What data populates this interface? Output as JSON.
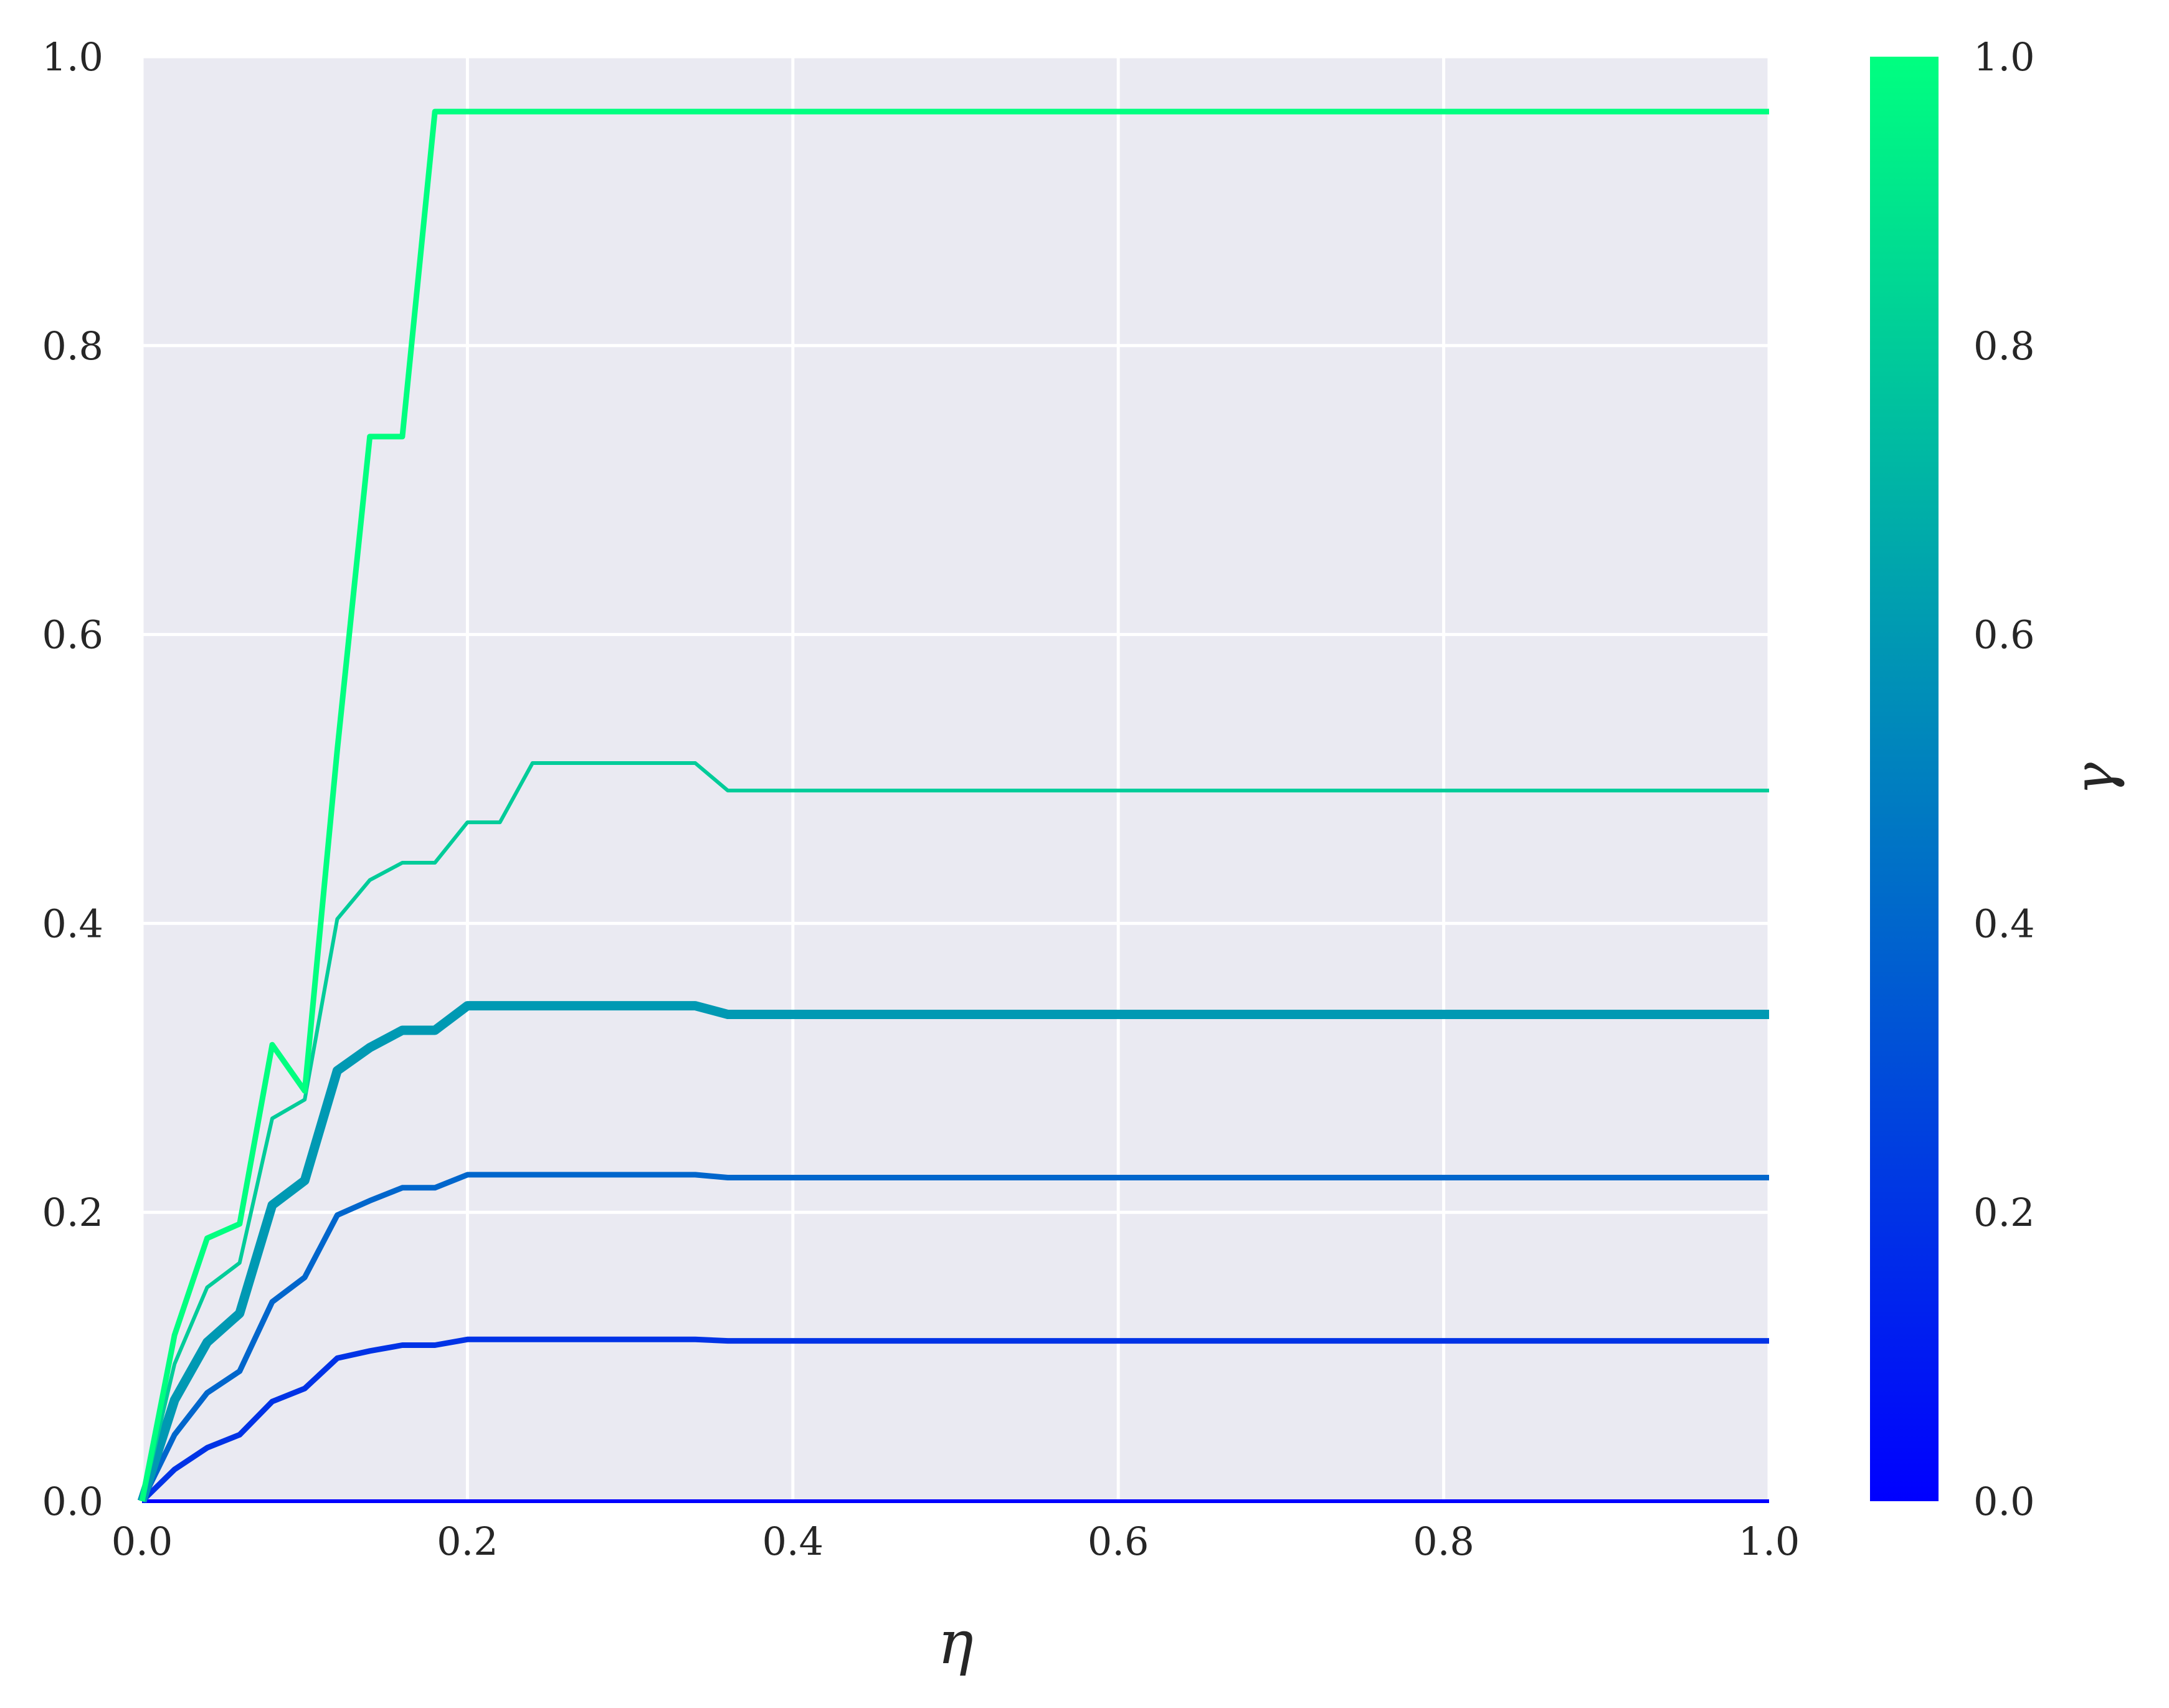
{
  "chart_data": {
    "type": "line",
    "title": "",
    "xlabel": "η",
    "ylabel": "",
    "xlim": [
      0.0,
      1.0
    ],
    "ylim": [
      0.0,
      1.0
    ],
    "grid": true,
    "background": "#eaeaf2",
    "grid_color": "#ffffff",
    "xticks": [
      "0.0",
      "0.2",
      "0.4",
      "0.6",
      "0.8",
      "1.0"
    ],
    "yticks": [
      "0.0",
      "0.2",
      "0.4",
      "0.6",
      "0.8",
      "1.0"
    ],
    "colorbar": {
      "label": "γ",
      "range": [
        0.0,
        1.0
      ],
      "ticks": [
        "0.0",
        "0.2",
        "0.4",
        "0.6",
        "0.8",
        "1.0"
      ],
      "colormap": "winter",
      "color_low": "#0000ff",
      "color_high": "#00ff80"
    },
    "series": [
      {
        "gamma": 0.0,
        "color": "#0000ff",
        "width": "thin",
        "x": [
          0.0,
          1.0
        ],
        "y": [
          0.0,
          0.0
        ]
      },
      {
        "gamma": 0.2,
        "color": "#0033e6",
        "width": "medium",
        "x": [
          0.0,
          0.02,
          0.04,
          0.06,
          0.08,
          0.1,
          0.12,
          0.14,
          0.16,
          0.18,
          0.2,
          0.34,
          0.36,
          1.0
        ],
        "y": [
          0.0,
          0.022,
          0.037,
          0.046,
          0.069,
          0.078,
          0.099,
          0.104,
          0.108,
          0.108,
          0.112,
          0.112,
          0.111,
          0.111
        ]
      },
      {
        "gamma": 0.4,
        "color": "#0066cc",
        "width": "medium",
        "x": [
          0.0,
          0.02,
          0.04,
          0.06,
          0.08,
          0.1,
          0.12,
          0.14,
          0.16,
          0.18,
          0.2,
          0.34,
          0.36,
          1.0
        ],
        "y": [
          0.0,
          0.046,
          0.075,
          0.09,
          0.138,
          0.155,
          0.198,
          0.208,
          0.217,
          0.217,
          0.226,
          0.226,
          0.224,
          0.224
        ]
      },
      {
        "gamma": 0.6,
        "color": "#0099b3",
        "width": "thick",
        "x": [
          0.0,
          0.02,
          0.04,
          0.06,
          0.08,
          0.1,
          0.12,
          0.14,
          0.16,
          0.18,
          0.2,
          0.34,
          0.36,
          1.0
        ],
        "y": [
          0.0,
          0.07,
          0.11,
          0.13,
          0.205,
          0.222,
          0.298,
          0.314,
          0.326,
          0.326,
          0.343,
          0.343,
          0.337,
          0.337
        ]
      },
      {
        "gamma": 0.8,
        "color": "#00cc99",
        "width": "thin",
        "x": [
          0.0,
          0.02,
          0.04,
          0.06,
          0.08,
          0.1,
          0.12,
          0.14,
          0.16,
          0.18,
          0.2,
          0.22,
          0.24,
          0.34,
          0.36,
          1.0
        ],
        "y": [
          0.0,
          0.095,
          0.148,
          0.165,
          0.265,
          0.278,
          0.403,
          0.43,
          0.442,
          0.442,
          0.47,
          0.47,
          0.511,
          0.511,
          0.492,
          0.492
        ]
      },
      {
        "gamma": 1.0,
        "color": "#00ff80",
        "width": "medium",
        "x": [
          0.0,
          0.02,
          0.04,
          0.06,
          0.08,
          0.1,
          0.12,
          0.14,
          0.16,
          0.18,
          1.0
        ],
        "y": [
          0.0,
          0.115,
          0.182,
          0.192,
          0.316,
          0.284,
          0.52,
          0.737,
          0.737,
          0.962,
          0.962
        ]
      }
    ]
  }
}
